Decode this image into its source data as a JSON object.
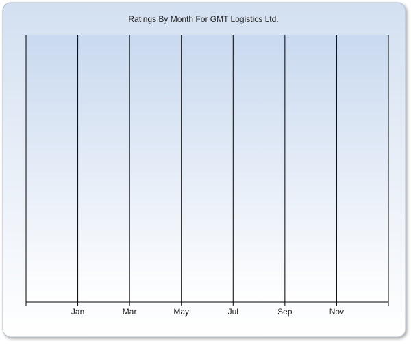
{
  "chart_data": {
    "type": "line",
    "title": "Ratings By Month For GMT Logistics Ltd.",
    "categories": [
      null,
      "Jan",
      "Mar",
      "May",
      "Jul",
      "Sep",
      "Nov",
      null
    ],
    "grid": true
  }
}
